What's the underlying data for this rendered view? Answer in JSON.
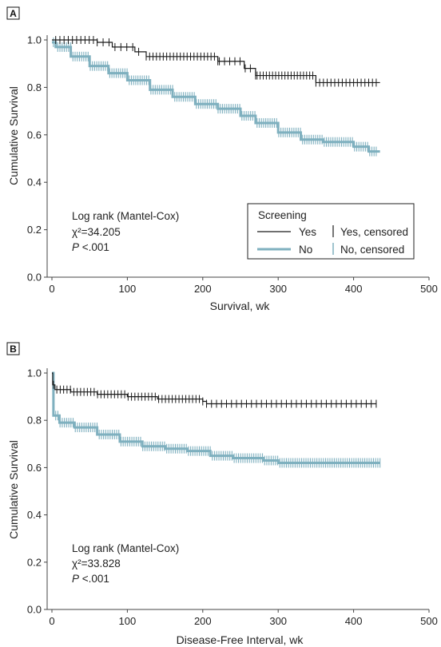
{
  "colors": {
    "screening_yes": "#1a1a1a",
    "screening_no": "#7fb0bf",
    "axis": "#444444"
  },
  "chart_data": [
    {
      "panel": "A",
      "type": "line",
      "xlabel": "Survival, wk",
      "ylabel": "Cumulative Survival",
      "xlim": [
        0,
        500
      ],
      "ylim": [
        0,
        1.0
      ],
      "xticks": [
        "0",
        "100",
        "200",
        "300",
        "400",
        "500"
      ],
      "yticks": [
        "0.0",
        "0.2",
        "0.4",
        "0.6",
        "0.8",
        "1.0"
      ],
      "annotation": {
        "line1": "Log rank (Mantel-Cox)",
        "chi_label": "χ²=34.205",
        "p_italic": "P",
        "p_value": " <.001"
      },
      "legend": {
        "title": "Screening",
        "yes": "Yes",
        "yes_censored": "Yes, censored",
        "no": "No",
        "no_censored": "No, censored",
        "placement": "lower-right"
      },
      "series": [
        {
          "name": "Yes",
          "color": "#1a1a1a",
          "steps": [
            [
              0,
              1.0
            ],
            [
              60,
              0.99
            ],
            [
              80,
              0.97
            ],
            [
              110,
              0.95
            ],
            [
              125,
              0.93
            ],
            [
              220,
              0.91
            ],
            [
              255,
              0.88
            ],
            [
              270,
              0.85
            ],
            [
              350,
              0.82
            ],
            [
              435,
              0.82
            ]
          ],
          "censored_ranges": [
            [
              5,
              55,
              10
            ],
            [
              60,
              115,
              8
            ],
            [
              125,
              220,
              22
            ],
            [
              222,
              270,
              8
            ],
            [
              272,
              350,
              20
            ],
            [
              355,
              430,
              16
            ]
          ]
        },
        {
          "name": "No",
          "color": "#7fb0bf",
          "steps": [
            [
              0,
              0.99
            ],
            [
              5,
              0.97
            ],
            [
              25,
              0.93
            ],
            [
              50,
              0.89
            ],
            [
              75,
              0.86
            ],
            [
              100,
              0.83
            ],
            [
              130,
              0.79
            ],
            [
              160,
              0.76
            ],
            [
              190,
              0.73
            ],
            [
              220,
              0.71
            ],
            [
              250,
              0.68
            ],
            [
              270,
              0.65
            ],
            [
              300,
              0.61
            ],
            [
              330,
              0.58
            ],
            [
              360,
              0.57
            ],
            [
              400,
              0.55
            ],
            [
              420,
              0.53
            ],
            [
              435,
              0.53
            ]
          ],
          "censored_ranges": [
            [
              2,
              430,
              150
            ]
          ]
        }
      ]
    },
    {
      "panel": "B",
      "type": "line",
      "xlabel": "Disease-Free Interval, wk",
      "ylabel": "Cumulative Survival",
      "xlim": [
        0,
        500
      ],
      "ylim": [
        0,
        1.0
      ],
      "xticks": [
        "0",
        "100",
        "200",
        "300",
        "400",
        "500"
      ],
      "yticks": [
        "0.0",
        "0.2",
        "0.4",
        "0.6",
        "0.8",
        "1.0"
      ],
      "annotation": {
        "line1": "Log rank (Mantel-Cox)",
        "chi_label": "χ²=33.828",
        "p_italic": "P",
        "p_value": " <.001"
      },
      "series": [
        {
          "name": "Yes",
          "color": "#1a1a1a",
          "steps": [
            [
              0,
              1.0
            ],
            [
              1,
              0.95
            ],
            [
              4,
              0.93
            ],
            [
              25,
              0.92
            ],
            [
              60,
              0.91
            ],
            [
              100,
              0.9
            ],
            [
              140,
              0.89
            ],
            [
              200,
              0.88
            ],
            [
              205,
              0.87
            ],
            [
              430,
              0.87
            ]
          ],
          "censored_ranges": [
            [
              2,
              200,
              45
            ],
            [
              205,
              430,
              35
            ]
          ]
        },
        {
          "name": "No",
          "color": "#7fb0bf",
          "steps": [
            [
              0,
              1.0
            ],
            [
              2,
              0.82
            ],
            [
              10,
              0.79
            ],
            [
              30,
              0.77
            ],
            [
              60,
              0.74
            ],
            [
              90,
              0.71
            ],
            [
              120,
              0.69
            ],
            [
              150,
              0.68
            ],
            [
              180,
              0.67
            ],
            [
              210,
              0.65
            ],
            [
              240,
              0.64
            ],
            [
              280,
              0.63
            ],
            [
              300,
              0.62
            ],
            [
              435,
              0.62
            ]
          ],
          "censored_ranges": [
            [
              5,
              435,
              150
            ]
          ]
        }
      ]
    }
  ]
}
